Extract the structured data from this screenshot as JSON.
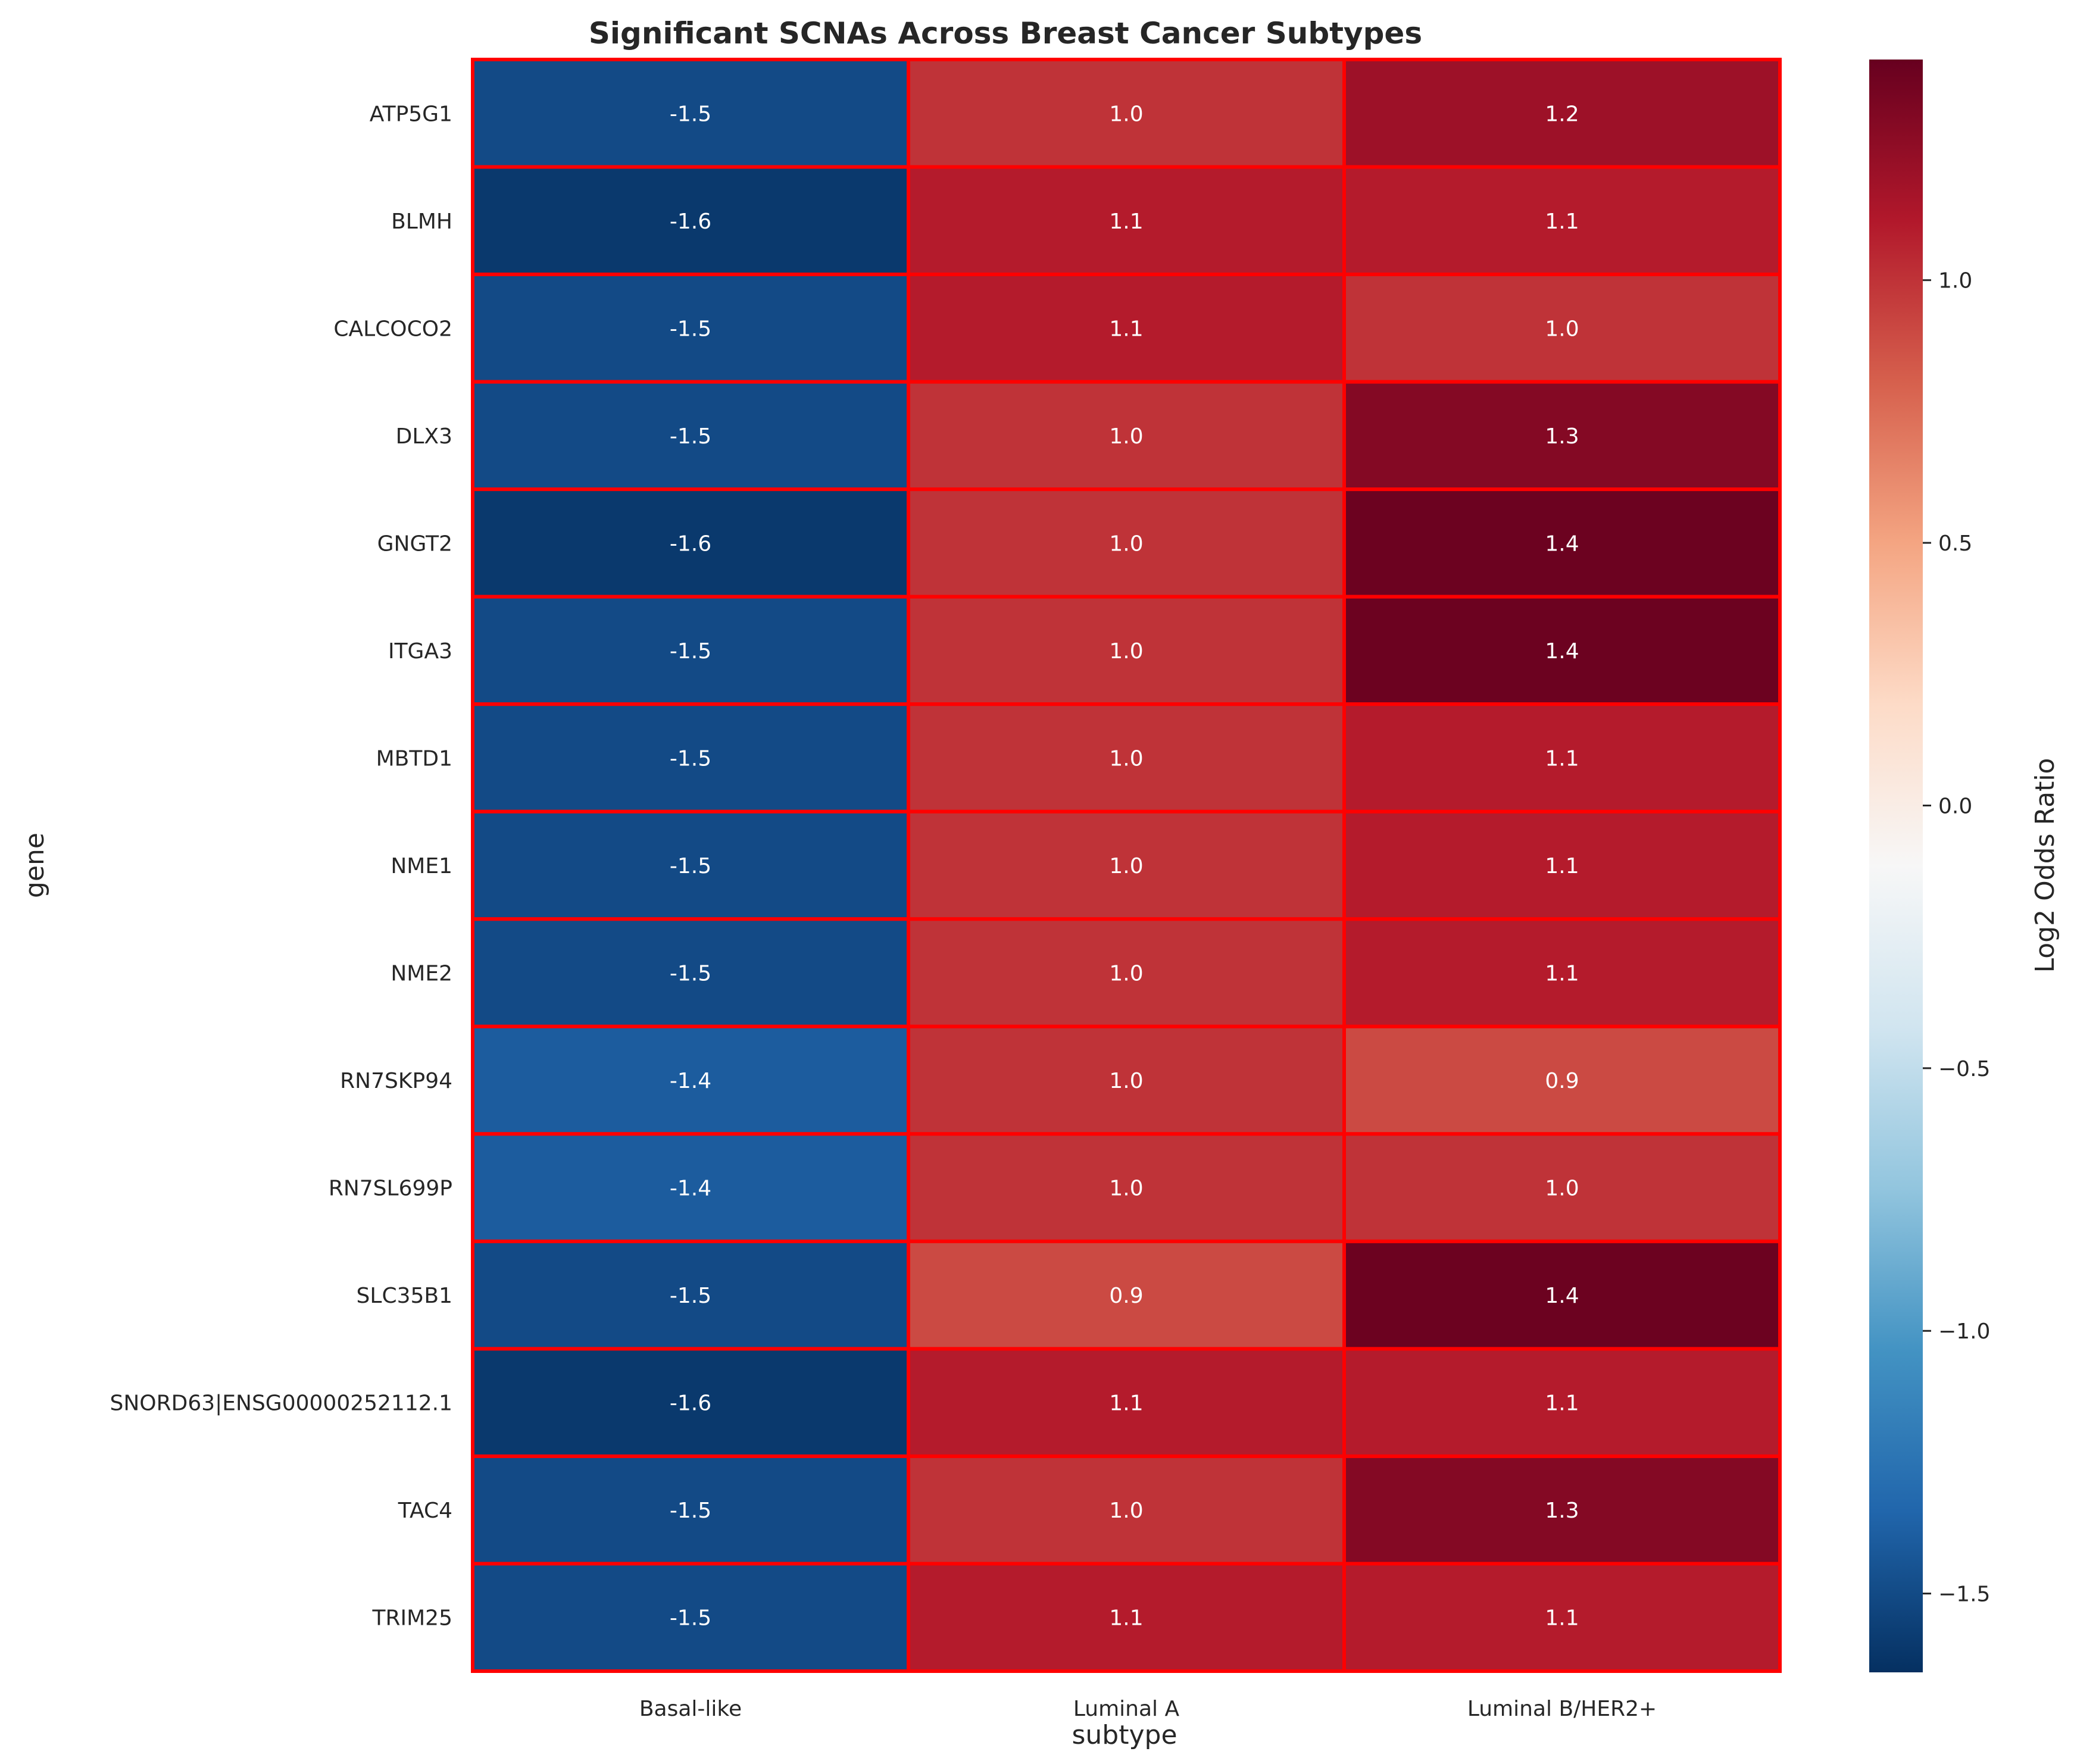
{
  "chart_data": {
    "type": "heatmap",
    "title": "Significant SCNAs Across Breast Cancer Subtypes",
    "xlabel": "subtype",
    "ylabel": "gene",
    "colorbar_label": "Log2 Odds Ratio",
    "x_categories": [
      "Basal-like",
      "Luminal A",
      "Luminal B/HER2+"
    ],
    "y_categories": [
      "ATP5G1",
      "BLMH",
      "CALCOCO2",
      "DLX3",
      "GNGT2",
      "ITGA3",
      "MBTD1",
      "NME1",
      "NME2",
      "RN7SKP94",
      "RN7SL699P",
      "SLC35B1",
      "SNORD63|ENSG00000252112.1",
      "TAC4",
      "TRIM25"
    ],
    "values": [
      [
        -1.5,
        1.0,
        1.2
      ],
      [
        -1.6,
        1.1,
        1.1
      ],
      [
        -1.5,
        1.1,
        1.0
      ],
      [
        -1.5,
        1.0,
        1.3
      ],
      [
        -1.6,
        1.0,
        1.4
      ],
      [
        -1.5,
        1.0,
        1.4
      ],
      [
        -1.5,
        1.0,
        1.1
      ],
      [
        -1.5,
        1.0,
        1.1
      ],
      [
        -1.5,
        1.0,
        1.1
      ],
      [
        -1.4,
        1.0,
        0.9
      ],
      [
        -1.4,
        1.0,
        1.0
      ],
      [
        -1.5,
        0.9,
        1.4
      ],
      [
        -1.6,
        1.1,
        1.1
      ],
      [
        -1.5,
        1.0,
        1.3
      ],
      [
        -1.5,
        1.1,
        1.1
      ]
    ],
    "display_values": [
      [
        "-1.5",
        "1.0",
        "1.2"
      ],
      [
        "-1.6",
        "1.1",
        "1.1"
      ],
      [
        "-1.5",
        "1.1",
        "1.0"
      ],
      [
        "-1.5",
        "1.0",
        "1.3"
      ],
      [
        "-1.6",
        "1.0",
        "1.4"
      ],
      [
        "-1.5",
        "1.0",
        "1.4"
      ],
      [
        "-1.5",
        "1.0",
        "1.1"
      ],
      [
        "-1.5",
        "1.0",
        "1.1"
      ],
      [
        "-1.5",
        "1.0",
        "1.1"
      ],
      [
        "-1.4",
        "1.0",
        "0.9"
      ],
      [
        "-1.4",
        "1.0",
        "1.0"
      ],
      [
        "-1.5",
        "0.9",
        "1.4"
      ],
      [
        "-1.6",
        "1.1",
        "1.1"
      ],
      [
        "-1.5",
        "1.0",
        "1.3"
      ],
      [
        "-1.5",
        "1.1",
        "1.1"
      ]
    ],
    "colormap": "RdBu_r",
    "vmin": -1.65,
    "vmax": 1.42,
    "colorbar_ticks": [
      1.0,
      0.5,
      0.0,
      -0.5,
      -1.0,
      -1.5
    ],
    "colorbar_tick_labels": [
      "1.0",
      "0.5",
      "0.0",
      "−0.5",
      "−1.0",
      "−1.5"
    ],
    "cell_border_color": "#ff0000",
    "grid": false
  }
}
